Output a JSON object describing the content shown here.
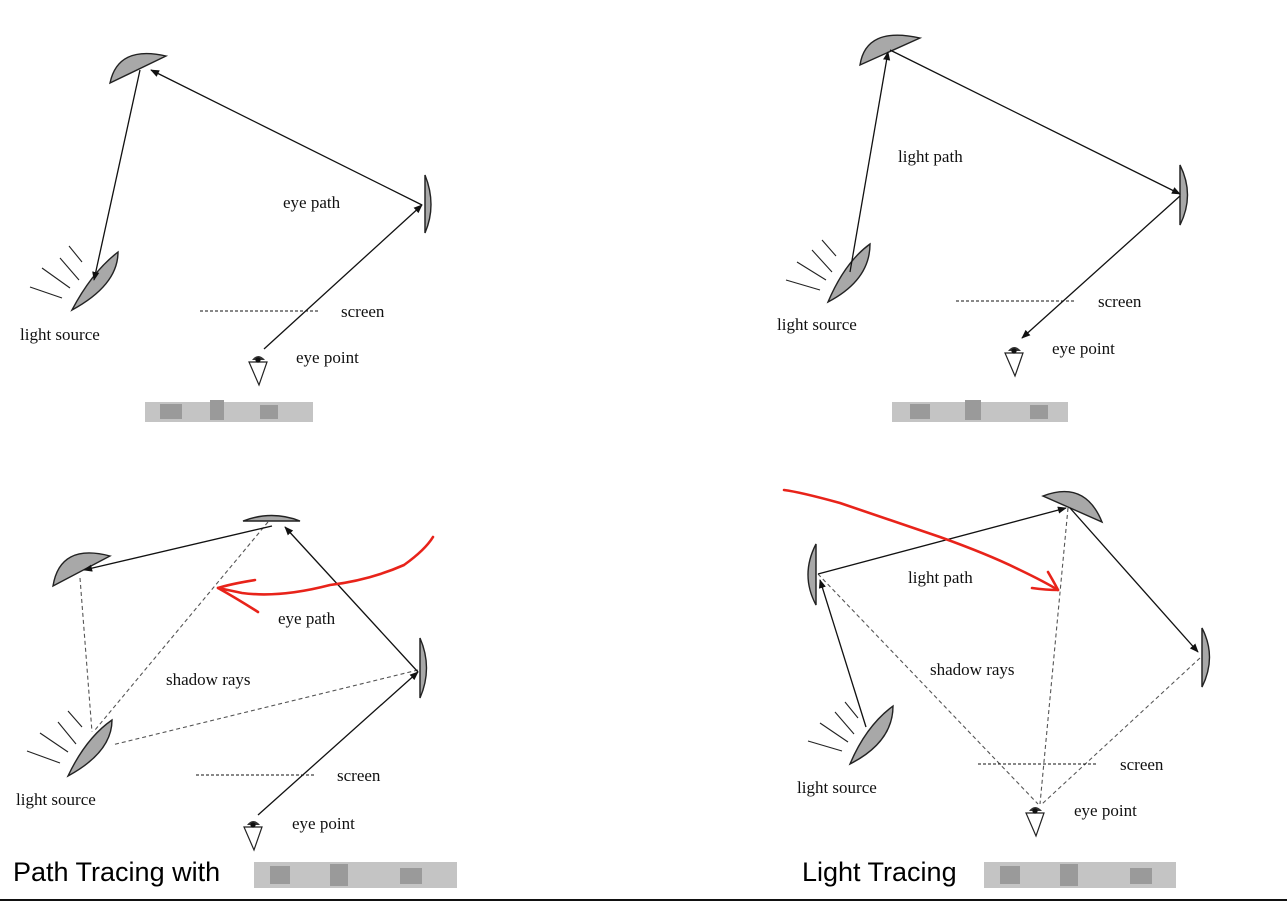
{
  "panels": {
    "eye_tracing": {
      "labels": {
        "eye_path": "eye path",
        "screen": "screen",
        "light_source": "light source",
        "eye_point": "eye point"
      }
    },
    "light_tracing": {
      "labels": {
        "light_path": "light path",
        "screen": "screen",
        "light_source": "light source",
        "eye_point": "eye point"
      }
    },
    "path_tracing_shadow": {
      "labels": {
        "eye_path": "eye path",
        "shadow_rays": "shadow rays",
        "screen": "screen",
        "light_source": "light source",
        "eye_point": "eye point"
      },
      "caption": "Path Tracing with"
    },
    "light_tracing_shadow": {
      "labels": {
        "light_path": "light path",
        "shadow_rays": "shadow rays",
        "screen": "screen",
        "light_source": "light source",
        "eye_point": "eye point"
      },
      "caption": "Light Tracing"
    }
  },
  "colors": {
    "annotation": "#e8231a",
    "surface": "#a8a8a8",
    "ray": "#111111"
  }
}
